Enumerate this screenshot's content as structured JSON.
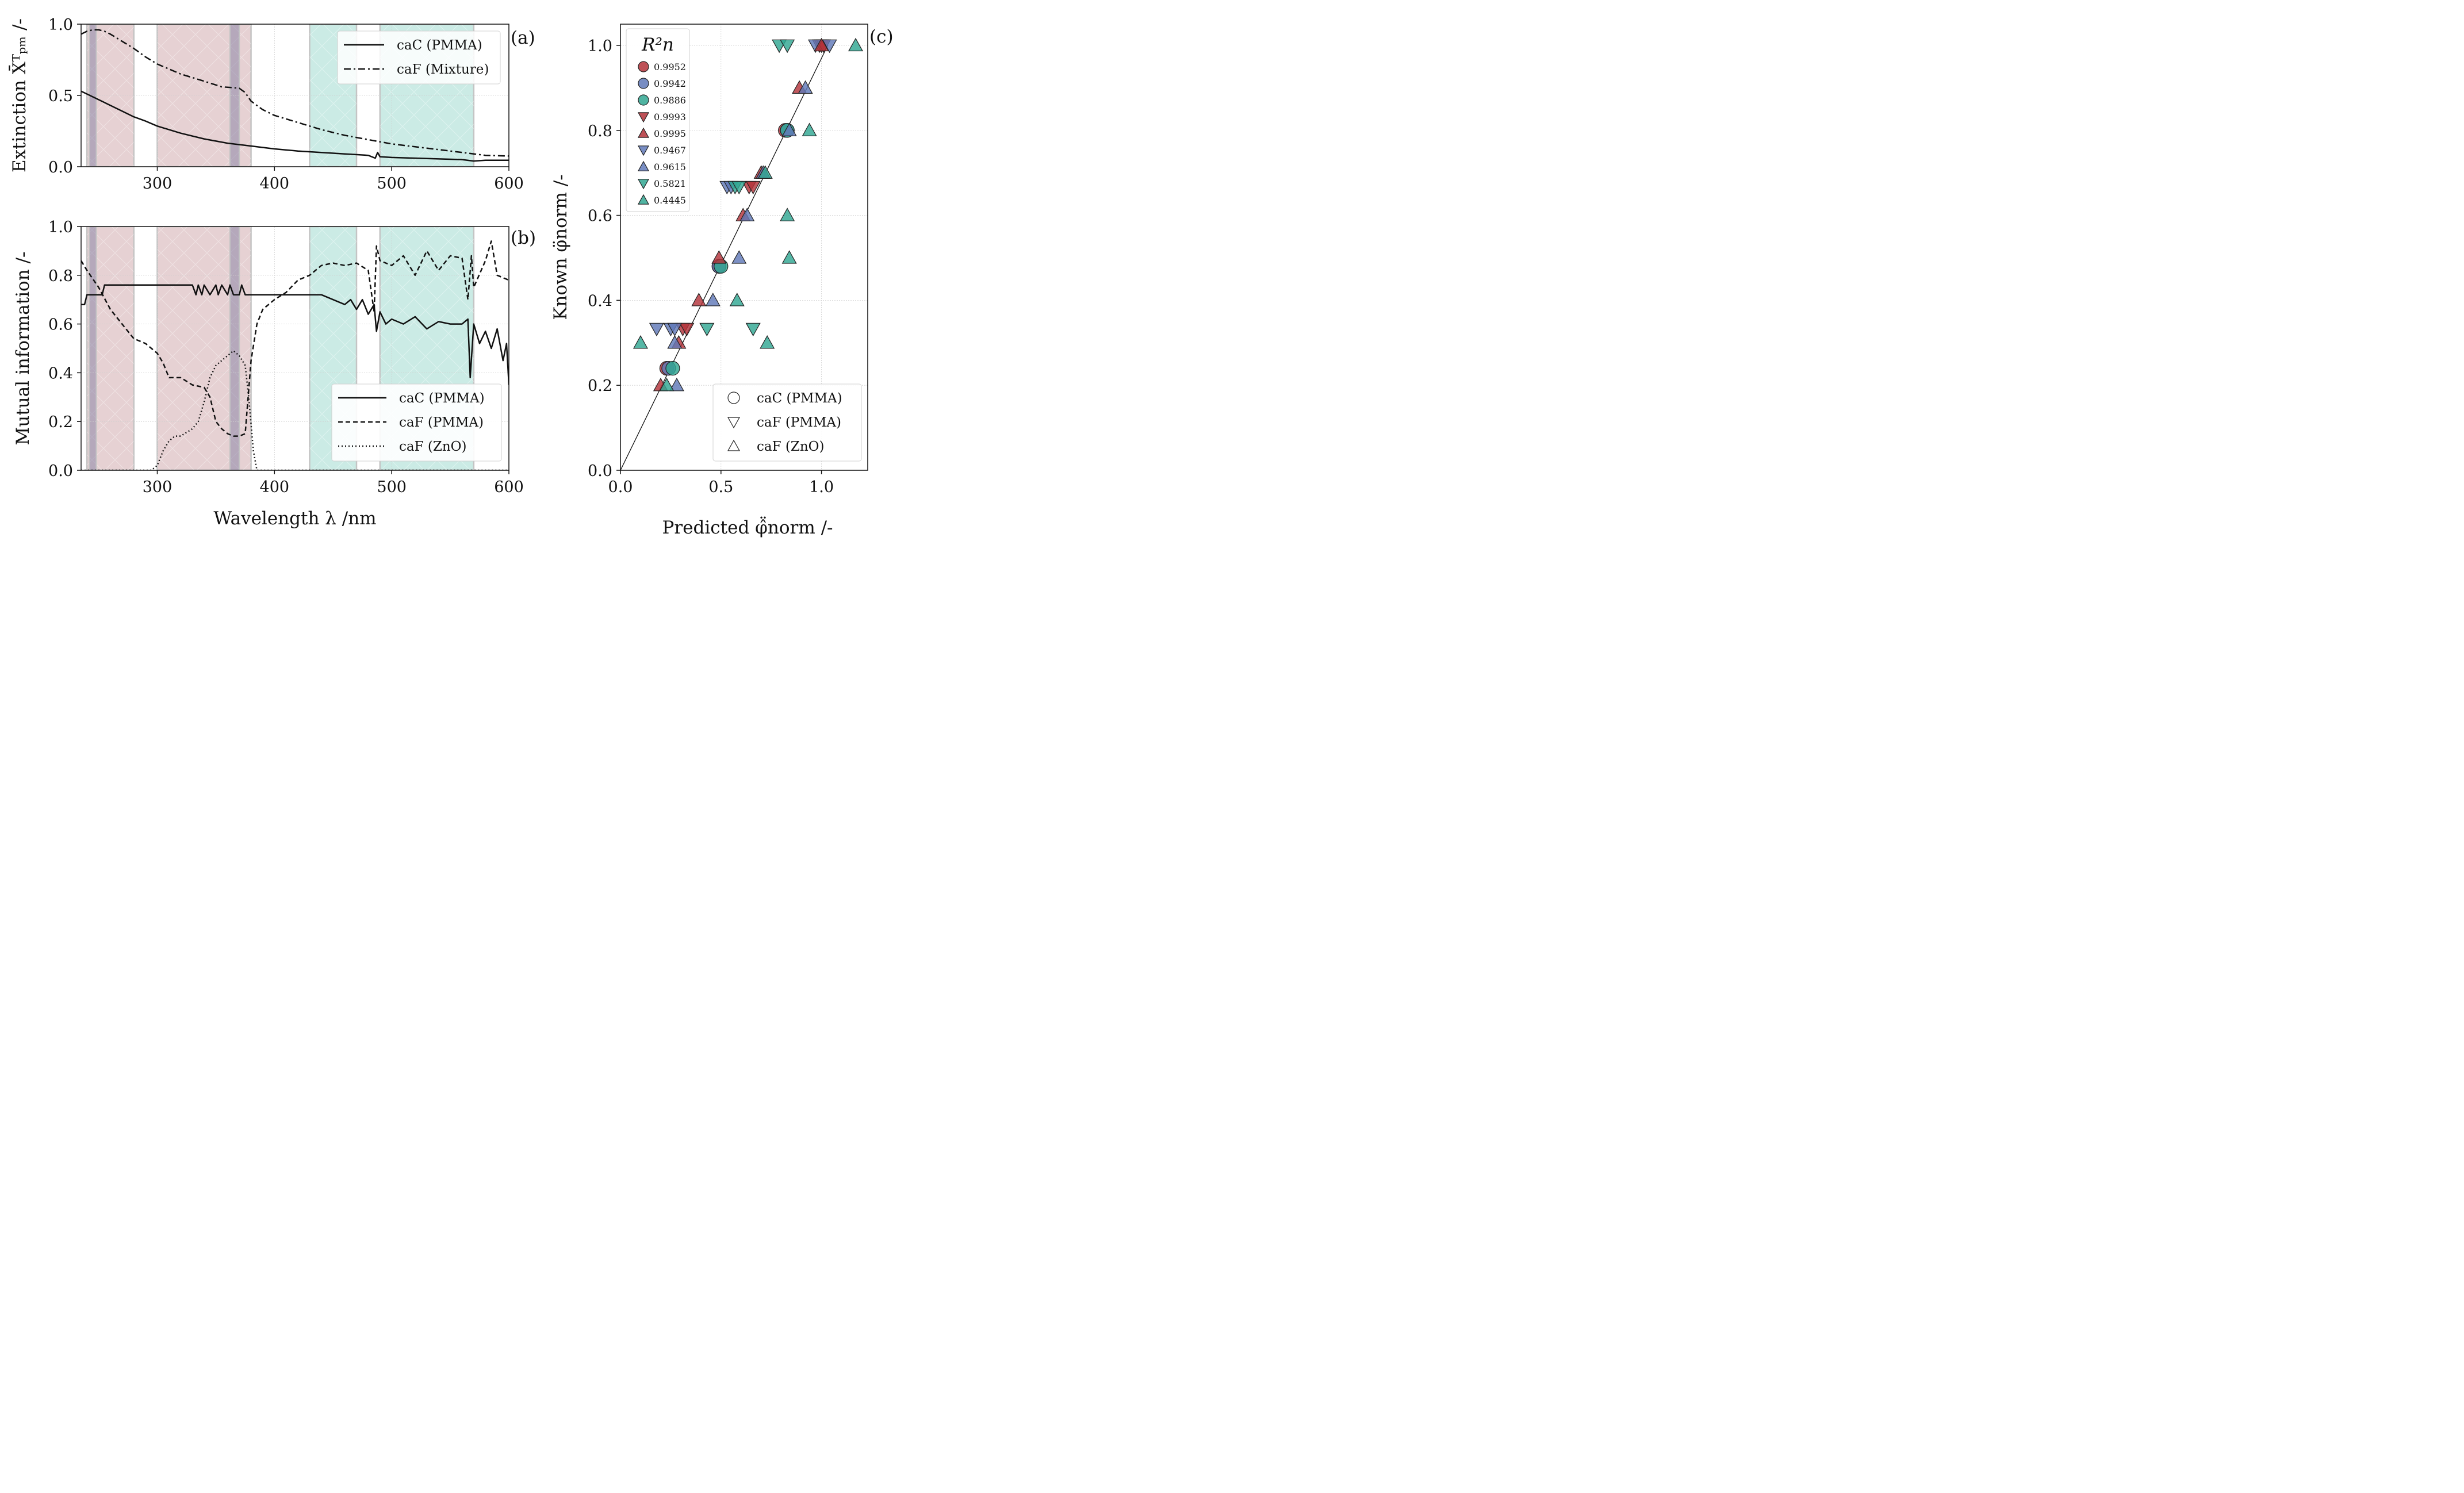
{
  "colors": {
    "uv_band": "#d9b8bb",
    "vis_band": "#a9ddd3",
    "band_edge": "#c4c4c4",
    "overlap_band": "#8c86a8",
    "red": "#b3333a",
    "blue": "#6079b8",
    "teal": "#31a792",
    "line": "#111111"
  },
  "chart_data": [
    {
      "type": "line",
      "panel_label": "(a)",
      "title": "",
      "xlabel": "",
      "ylabel": "Extinction X̄ᵀₚₘ /-",
      "xlim": [
        235,
        600
      ],
      "ylim": [
        0,
        1.0
      ],
      "xticks": [
        "300",
        "400",
        "500",
        "600"
      ],
      "yticks": [
        "0.0",
        "0.5",
        "1.0"
      ],
      "shaded_bands_nm": {
        "uv": [
          [
            240,
            280
          ],
          [
            300,
            380
          ]
        ],
        "uv_overlap": [
          [
            242,
            248
          ],
          [
            362,
            370
          ]
        ],
        "visible": [
          [
            430,
            470
          ],
          [
            490,
            570
          ]
        ]
      },
      "legend": [
        "caC (PMMA)",
        "caF (Mixture)"
      ],
      "series": [
        {
          "name": "caC (PMMA)",
          "style": "solid",
          "x": [
            235,
            250,
            260,
            270,
            280,
            290,
            300,
            320,
            340,
            360,
            380,
            400,
            420,
            440,
            460,
            480,
            486,
            488,
            490,
            500,
            520,
            540,
            560,
            570,
            580,
            600
          ],
          "y": [
            0.53,
            0.47,
            0.43,
            0.39,
            0.35,
            0.32,
            0.285,
            0.235,
            0.195,
            0.165,
            0.145,
            0.125,
            0.11,
            0.1,
            0.09,
            0.08,
            0.06,
            0.1,
            0.07,
            0.065,
            0.06,
            0.055,
            0.05,
            0.04,
            0.045,
            0.045
          ]
        },
        {
          "name": "caF (Mixture)",
          "style": "dashdot",
          "x": [
            235,
            240,
            245,
            250,
            255,
            260,
            270,
            280,
            290,
            300,
            320,
            340,
            355,
            365,
            370,
            375,
            380,
            390,
            400,
            420,
            440,
            460,
            480,
            500,
            520,
            540,
            560,
            580,
            600
          ],
          "y": [
            0.93,
            0.95,
            0.96,
            0.96,
            0.95,
            0.93,
            0.88,
            0.83,
            0.77,
            0.72,
            0.65,
            0.6,
            0.56,
            0.555,
            0.55,
            0.52,
            0.46,
            0.4,
            0.36,
            0.31,
            0.26,
            0.22,
            0.19,
            0.16,
            0.14,
            0.12,
            0.1,
            0.08,
            0.075
          ]
        }
      ]
    },
    {
      "type": "line",
      "panel_label": "(b)",
      "title": "",
      "xlabel": "Wavelength λ /nm",
      "ylabel": "Mutual information /-",
      "xlim": [
        235,
        600
      ],
      "ylim": [
        0,
        1.0
      ],
      "xticks": [
        "300",
        "400",
        "500",
        "600"
      ],
      "yticks": [
        "0.0",
        "0.2",
        "0.4",
        "0.6",
        "0.8",
        "1.0"
      ],
      "legend": [
        "caC (PMMA)",
        "caF (PMMA)",
        "caF (ZnO)"
      ],
      "series": [
        {
          "name": "caC (PMMA)",
          "style": "solid",
          "x": [
            235,
            238,
            240,
            253,
            255,
            330,
            333,
            335,
            338,
            340,
            345,
            350,
            352,
            355,
            360,
            362,
            365,
            370,
            372,
            375,
            380,
            400,
            420,
            440,
            460,
            465,
            470,
            475,
            480,
            485,
            487,
            490,
            495,
            500,
            510,
            520,
            530,
            540,
            550,
            560,
            565,
            567,
            570,
            575,
            580,
            585,
            590,
            595,
            598,
            600
          ],
          "y": [
            0.68,
            0.68,
            0.72,
            0.72,
            0.76,
            0.76,
            0.72,
            0.76,
            0.72,
            0.76,
            0.72,
            0.76,
            0.72,
            0.76,
            0.72,
            0.76,
            0.72,
            0.72,
            0.76,
            0.72,
            0.72,
            0.72,
            0.72,
            0.72,
            0.68,
            0.7,
            0.66,
            0.7,
            0.64,
            0.68,
            0.57,
            0.65,
            0.6,
            0.62,
            0.6,
            0.63,
            0.58,
            0.61,
            0.6,
            0.6,
            0.62,
            0.38,
            0.6,
            0.52,
            0.57,
            0.5,
            0.58,
            0.45,
            0.52,
            0.35
          ]
        },
        {
          "name": "caF (PMMA)",
          "style": "dashed",
          "x": [
            235,
            240,
            250,
            260,
            270,
            280,
            290,
            295,
            300,
            305,
            310,
            320,
            330,
            340,
            345,
            350,
            355,
            360,
            365,
            370,
            375,
            380,
            385,
            390,
            395,
            400,
            410,
            420,
            430,
            440,
            450,
            460,
            470,
            480,
            485,
            487,
            490,
            500,
            510,
            520,
            530,
            540,
            550,
            560,
            565,
            568,
            570,
            580,
            585,
            590,
            600
          ],
          "y": [
            0.86,
            0.82,
            0.75,
            0.66,
            0.6,
            0.54,
            0.52,
            0.5,
            0.48,
            0.44,
            0.38,
            0.38,
            0.35,
            0.34,
            0.3,
            0.2,
            0.17,
            0.15,
            0.14,
            0.14,
            0.15,
            0.45,
            0.6,
            0.66,
            0.68,
            0.7,
            0.73,
            0.78,
            0.8,
            0.84,
            0.85,
            0.84,
            0.85,
            0.82,
            0.65,
            0.92,
            0.86,
            0.84,
            0.88,
            0.8,
            0.9,
            0.82,
            0.88,
            0.87,
            0.7,
            0.88,
            0.75,
            0.86,
            0.94,
            0.8,
            0.78
          ]
        },
        {
          "name": "caF (ZnO)",
          "style": "dotted",
          "x": [
            235,
            295,
            300,
            305,
            310,
            315,
            320,
            330,
            335,
            340,
            345,
            350,
            355,
            360,
            365,
            370,
            375,
            378,
            382,
            385,
            600
          ],
          "y": [
            0.0,
            0.0,
            0.02,
            0.08,
            0.12,
            0.14,
            0.14,
            0.17,
            0.2,
            0.28,
            0.38,
            0.43,
            0.45,
            0.47,
            0.49,
            0.47,
            0.43,
            0.3,
            0.08,
            0.0,
            0.0
          ]
        }
      ]
    },
    {
      "type": "scatter",
      "panel_label": "(c)",
      "title": "",
      "xlabel": "Predicted φ̂̈norm /-",
      "ylabel": "Known φ̈norm /-",
      "xlim": [
        0,
        1.23
      ],
      "ylim": [
        0,
        1.05
      ],
      "xticks": [
        "0.0",
        "0.5",
        "1.0"
      ],
      "yticks": [
        "0.0",
        "0.2",
        "0.4",
        "0.6",
        "0.8",
        "1.0"
      ],
      "reference_line": "y = x",
      "legend_title": "R²n",
      "r2_legend": [
        {
          "value": "0.9952",
          "marker": "circle",
          "color": "#b3333a"
        },
        {
          "value": "0.9942",
          "marker": "circle",
          "color": "#6079b8"
        },
        {
          "value": "0.9886",
          "marker": "circle",
          "color": "#31a792"
        },
        {
          "value": "0.9993",
          "marker": "down",
          "color": "#b3333a"
        },
        {
          "value": "0.9995",
          "marker": "up",
          "color": "#b3333a"
        },
        {
          "value": "0.9467",
          "marker": "down",
          "color": "#6079b8"
        },
        {
          "value": "0.9615",
          "marker": "up",
          "color": "#6079b8"
        },
        {
          "value": "0.5821",
          "marker": "down",
          "color": "#31a792"
        },
        {
          "value": "0.4445",
          "marker": "up",
          "color": "#31a792"
        }
      ],
      "marker_legend": [
        {
          "label": "caC (PMMA)",
          "marker": "circle"
        },
        {
          "label": "caF (PMMA)",
          "marker": "down"
        },
        {
          "label": "caF (ZnO)",
          "marker": "up"
        }
      ],
      "series": [
        {
          "name": "caC (PMMA) #1",
          "marker": "circle",
          "color": "#b3333a",
          "x": [
            0.23,
            0.49,
            0.82
          ],
          "y": [
            0.24,
            0.48,
            0.8
          ]
        },
        {
          "name": "caC (PMMA) #2",
          "marker": "circle",
          "color": "#6079b8",
          "x": [
            0.24,
            0.49,
            0.83
          ],
          "y": [
            0.24,
            0.48,
            0.8
          ]
        },
        {
          "name": "caC (PMMA) #3",
          "marker": "circle",
          "color": "#31a792",
          "x": [
            0.26,
            0.5,
            0.83
          ],
          "y": [
            0.24,
            0.48,
            0.8
          ]
        },
        {
          "name": "caF (PMMA) #1",
          "marker": "down",
          "color": "#b3333a",
          "x": [
            0.31,
            0.33,
            0.64,
            0.66,
            0.99,
            1.0,
            1.01
          ],
          "y": [
            0.333,
            0.333,
            0.667,
            0.667,
            1.0,
            1.0,
            1.0
          ]
        },
        {
          "name": "caF (PMMA) #2",
          "marker": "down",
          "color": "#6079b8",
          "x": [
            0.18,
            0.25,
            0.27,
            0.53,
            0.55,
            0.97,
            1.04
          ],
          "y": [
            0.333,
            0.333,
            0.333,
            0.667,
            0.667,
            1.0,
            1.0
          ]
        },
        {
          "name": "caF (PMMA) #3",
          "marker": "down",
          "color": "#31a792",
          "x": [
            0.43,
            0.66,
            0.57,
            0.59,
            0.79,
            0.83
          ],
          "y": [
            0.333,
            0.333,
            0.667,
            0.667,
            1.0,
            1.0
          ]
        },
        {
          "name": "caF (ZnO) #1",
          "marker": "up",
          "color": "#b3333a",
          "x": [
            0.2,
            0.29,
            0.39,
            0.49,
            0.61,
            0.7,
            0.89,
            1.0
          ],
          "y": [
            0.2,
            0.3,
            0.4,
            0.5,
            0.6,
            0.7,
            0.9,
            1.0
          ]
        },
        {
          "name": "caF (ZnO) #2",
          "marker": "up",
          "color": "#6079b8",
          "x": [
            0.28,
            0.27,
            0.46,
            0.59,
            0.63,
            0.71,
            0.92,
            0.84
          ],
          "y": [
            0.2,
            0.3,
            0.4,
            0.5,
            0.6,
            0.7,
            0.9,
            0.8
          ]
        },
        {
          "name": "caF (ZnO) #3",
          "marker": "up",
          "color": "#31a792",
          "x": [
            0.23,
            0.1,
            0.73,
            0.58,
            0.84,
            0.83,
            0.72,
            0.94,
            1.17
          ],
          "y": [
            0.2,
            0.3,
            0.3,
            0.4,
            0.5,
            0.6,
            0.7,
            0.8,
            1.0
          ]
        }
      ]
    }
  ]
}
